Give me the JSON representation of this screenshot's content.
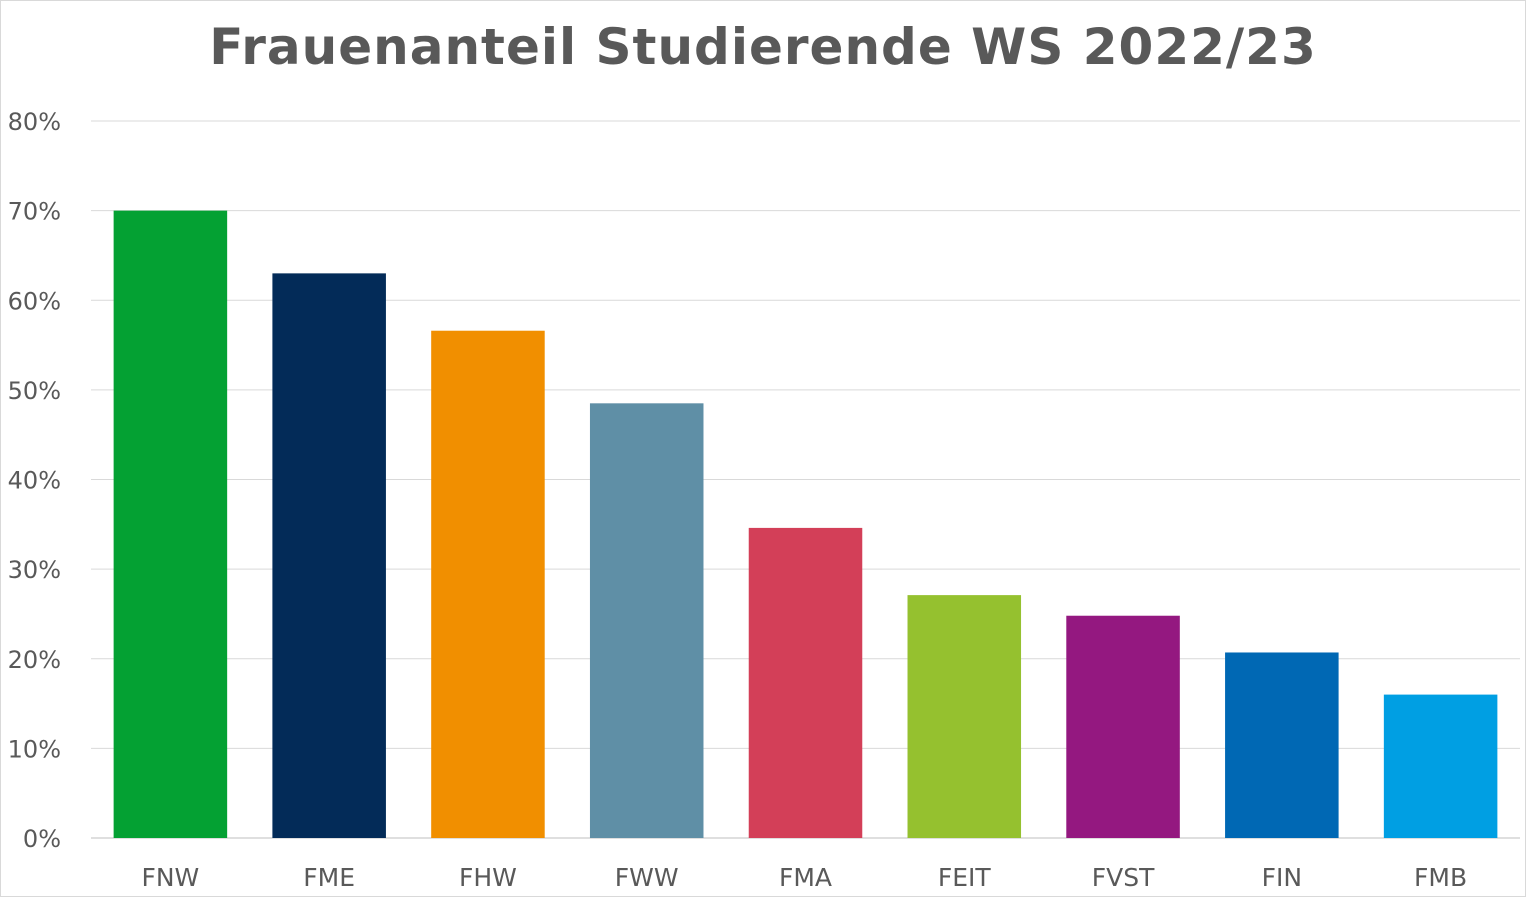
{
  "chart_data": {
    "type": "bar",
    "title": "Frauenanteil Studierende WS 2022/23",
    "xlabel": "",
    "ylabel": "",
    "categories": [
      "FNW",
      "FME",
      "FHW",
      "FWW",
      "FMA",
      "FEIT",
      "FVST",
      "FIN",
      "FMB"
    ],
    "values": [
      70.0,
      63.0,
      56.6,
      48.5,
      34.6,
      27.1,
      24.8,
      20.7,
      16.0
    ],
    "colors": [
      "#04a133",
      "#032b58",
      "#f18f00",
      "#5f8fa6",
      "#d33f58",
      "#95c12f",
      "#941880",
      "#0068b4",
      "#009fe3"
    ],
    "ylim": [
      0,
      80
    ],
    "yticks": [
      0,
      10,
      20,
      30,
      40,
      50,
      60,
      70,
      80
    ],
    "ytick_labels": [
      "0%",
      "10%",
      "20%",
      "30%",
      "40%",
      "50%",
      "60%",
      "70%",
      "80%"
    ],
    "grid": true,
    "legend": "none"
  }
}
